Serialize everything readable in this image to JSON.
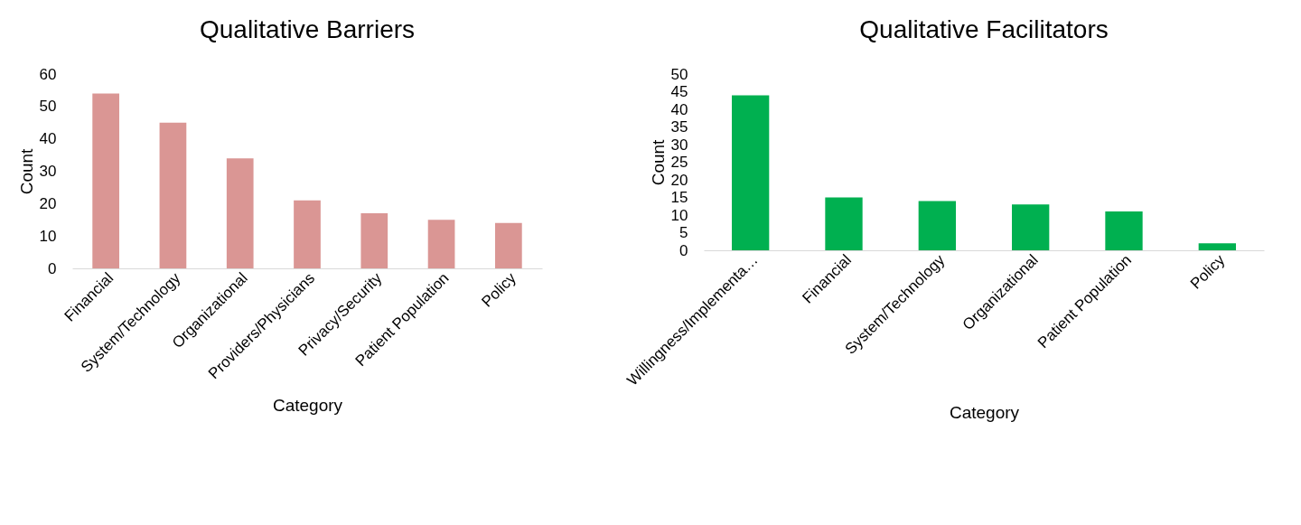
{
  "chart_data": [
    {
      "type": "bar",
      "title": "Qualitative Barriers",
      "xlabel": "Category",
      "ylabel": "Count",
      "categories": [
        "Financial",
        "System/Technology",
        "Organizational",
        "Providers/Physicians",
        "Privacy/Security",
        "Patient Population",
        "Policy"
      ],
      "values": [
        54,
        45,
        34,
        21,
        17,
        15,
        14
      ],
      "color": "#da9694",
      "ylim": [
        0,
        60
      ],
      "yticks": [
        0,
        10,
        20,
        30,
        40,
        50,
        60
      ],
      "grid": false
    },
    {
      "type": "bar",
      "title": "Qualitative Facilitators",
      "xlabel": "Category",
      "ylabel": "Count",
      "categories": [
        "Willingness/Implementa…",
        "Financial",
        "System/Technology",
        "Organizational",
        "Patient Population",
        "Policy"
      ],
      "values": [
        44,
        15,
        14,
        13,
        11,
        2
      ],
      "color": "#00b050",
      "ylim": [
        0,
        50
      ],
      "yticks": [
        0,
        5,
        10,
        15,
        20,
        25,
        30,
        35,
        40,
        45,
        50
      ],
      "grid": false
    }
  ]
}
